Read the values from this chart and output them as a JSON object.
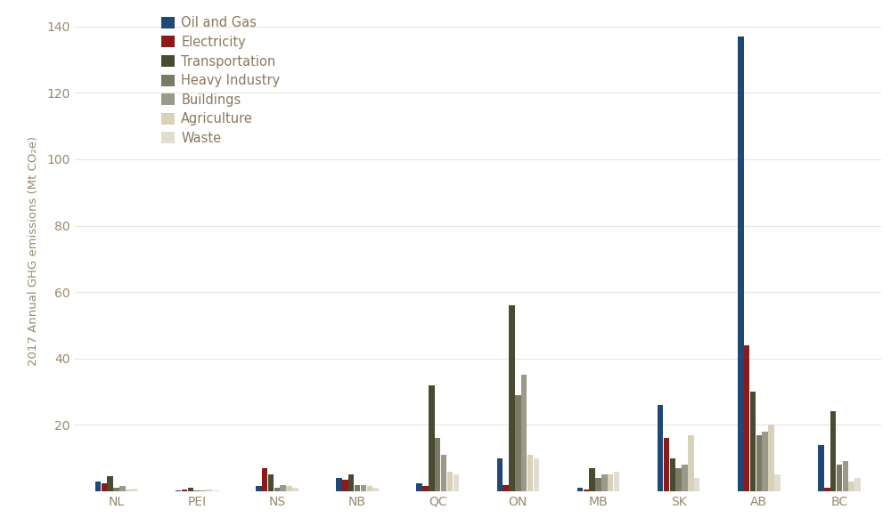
{
  "provinces": [
    "NL",
    "PEI",
    "NS",
    "NB",
    "QC",
    "ON",
    "MB",
    "SK",
    "AB",
    "BC"
  ],
  "sectors": [
    "Oil and Gas",
    "Electricity",
    "Transportation",
    "Heavy Industry",
    "Buildings",
    "Agriculture",
    "Waste"
  ],
  "sector_colors": [
    "#1f4778",
    "#8b1a1a",
    "#4a4a30",
    "#7a7a65",
    "#9a9a8a",
    "#d8d3b8",
    "#e2ddd0"
  ],
  "data": {
    "Oil and Gas": [
      3.0,
      0.2,
      1.5,
      4.0,
      2.5,
      10.0,
      1.0,
      26.0,
      137.0,
      14.0
    ],
    "Electricity": [
      2.5,
      0.5,
      7.0,
      3.5,
      1.5,
      2.0,
      0.5,
      16.0,
      44.0,
      1.0
    ],
    "Transportation": [
      4.5,
      1.0,
      5.0,
      5.0,
      32.0,
      56.0,
      7.0,
      10.0,
      30.0,
      24.0
    ],
    "Heavy Industry": [
      1.0,
      0.3,
      1.0,
      2.0,
      16.0,
      29.0,
      4.0,
      7.0,
      17.0,
      8.0
    ],
    "Buildings": [
      1.5,
      0.4,
      2.0,
      2.0,
      11.0,
      35.0,
      5.0,
      8.0,
      18.0,
      9.0
    ],
    "Agriculture": [
      0.5,
      0.5,
      1.5,
      1.5,
      6.0,
      11.0,
      5.0,
      17.0,
      20.0,
      3.0
    ],
    "Waste": [
      0.8,
      0.3,
      1.0,
      1.0,
      5.0,
      10.0,
      6.0,
      4.0,
      5.0,
      4.0
    ]
  },
  "ylabel": "2017 Annual GHG emissions (Mt CO₂e)",
  "ylim": [
    0,
    145
  ],
  "yticks": [
    0,
    20,
    40,
    60,
    80,
    100,
    120,
    140
  ],
  "background_color": "#ffffff",
  "grid_color": "#e8e4dc",
  "legend_fontsize": 10.5,
  "axis_fontsize": 9.5,
  "tick_fontsize": 10,
  "label_color": "#9a8870",
  "text_color": "#8a7860"
}
